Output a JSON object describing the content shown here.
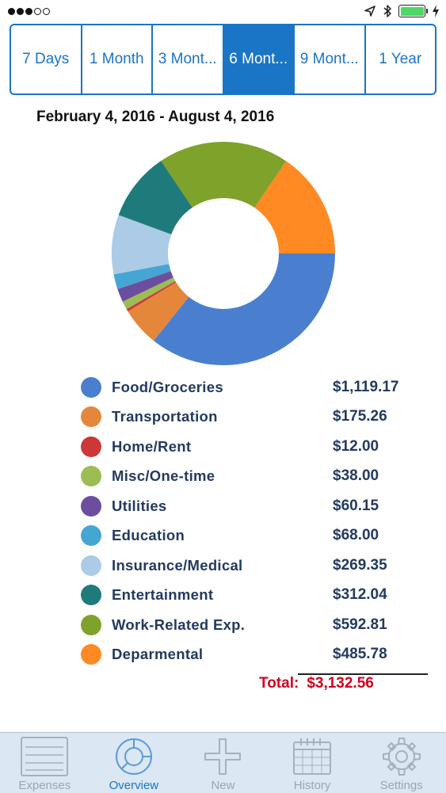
{
  "status_bar": {
    "signal_dots_filled": 3,
    "signal_dots_total": 5,
    "icons": [
      "location-icon",
      "bluetooth-icon",
      "battery-icon",
      "charging-icon"
    ],
    "battery_level": 1.0
  },
  "segments": [
    {
      "label": "7 Days",
      "active": false
    },
    {
      "label": "1 Month",
      "active": false
    },
    {
      "label": "3 Mont...",
      "active": false
    },
    {
      "label": "6 Mont...",
      "active": true
    },
    {
      "label": "9 Mont...",
      "active": false
    },
    {
      "label": "1 Year",
      "active": false
    }
  ],
  "date_range": "February 4, 2016 - August 4, 2016",
  "chart_data": {
    "type": "pie",
    "categories": [
      "Food/Groceries",
      "Transportation",
      "Home/Rent",
      "Misc/One-time",
      "Utilities",
      "Education",
      "Insurance/Medical",
      "Entertainment",
      "Work-Related Exp.",
      "Deparmental"
    ],
    "values": [
      1119.17,
      175.26,
      12.0,
      38.0,
      60.15,
      68.0,
      269.35,
      312.04,
      592.81,
      485.78
    ],
    "colors": [
      "#4a7fd0",
      "#e4873a",
      "#cc3838",
      "#9bbd52",
      "#6b4f9e",
      "#46a6d3",
      "#abcbe7",
      "#1f7b7b",
      "#7ea22a",
      "#ff8a24"
    ]
  },
  "legend": [
    {
      "label": "Food/Groceries",
      "value": "$1,119.17",
      "color": "#4a7fd0"
    },
    {
      "label": "Transportation",
      "value": "$175.26",
      "color": "#e4873a"
    },
    {
      "label": "Home/Rent",
      "value": "$12.00",
      "color": "#cc3838"
    },
    {
      "label": "Misc/One-time",
      "value": "$38.00",
      "color": "#9bbd52"
    },
    {
      "label": "Utilities",
      "value": "$60.15",
      "color": "#6b4f9e"
    },
    {
      "label": "Education",
      "value": "$68.00",
      "color": "#46a6d3"
    },
    {
      "label": "Insurance/Medical",
      "value": "$269.35",
      "color": "#abcbe7"
    },
    {
      "label": "Entertainment",
      "value": "$312.04",
      "color": "#1f7b7b"
    },
    {
      "label": "Work-Related Exp.",
      "value": "$592.81",
      "color": "#7ea22a"
    },
    {
      "label": "Deparmental",
      "value": "$485.78",
      "color": "#ff8a24"
    }
  ],
  "total": {
    "label": "Total:",
    "value": "$3,132.56",
    "color": "#d0021b"
  },
  "tabs": [
    {
      "label": "Expenses",
      "icon": "expenses-list-icon",
      "active": false
    },
    {
      "label": "Overview",
      "icon": "donut-chart-icon",
      "active": true
    },
    {
      "label": "New",
      "icon": "plus-icon",
      "active": false
    },
    {
      "label": "History",
      "icon": "calendar-icon",
      "active": false
    },
    {
      "label": "Settings",
      "icon": "gear-icon",
      "active": false
    }
  ]
}
